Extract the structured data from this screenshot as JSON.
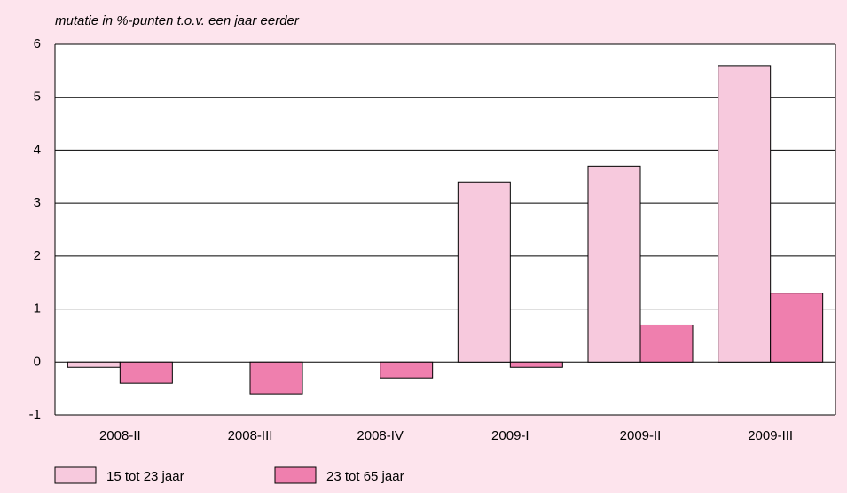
{
  "chart_data": {
    "type": "bar",
    "title": "mutatie in %-punten t.o.v. een jaar eerder",
    "categories": [
      "2008-II",
      "2008-III",
      "2008-IV",
      "2009-I",
      "2009-II",
      "2009-III"
    ],
    "series": [
      {
        "name": "15 tot 23 jaar",
        "color": "#f7c9dd",
        "values": [
          -0.1,
          0,
          0,
          3.4,
          3.7,
          5.6
        ]
      },
      {
        "name": "23 tot 65 jaar",
        "color": "#ef7fae",
        "values": [
          -0.4,
          -0.6,
          -0.3,
          -0.1,
          0.7,
          1.3
        ]
      }
    ],
    "ylim": [
      -1,
      6
    ],
    "yticks": [
      -1,
      0,
      1,
      2,
      3,
      4,
      5,
      6
    ],
    "grid": true
  }
}
